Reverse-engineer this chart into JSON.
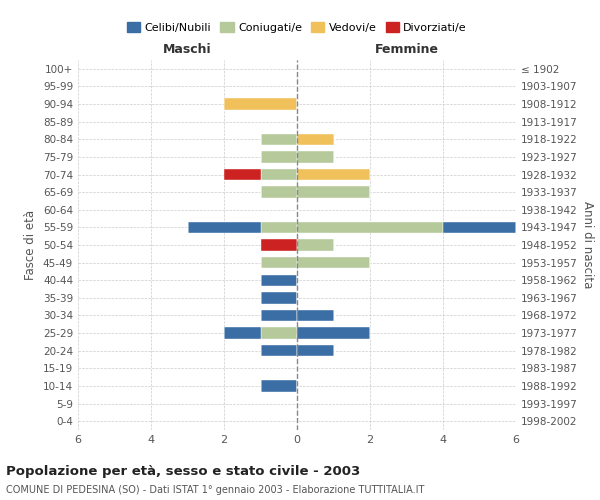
{
  "age_groups": [
    "0-4",
    "5-9",
    "10-14",
    "15-19",
    "20-24",
    "25-29",
    "30-34",
    "35-39",
    "40-44",
    "45-49",
    "50-54",
    "55-59",
    "60-64",
    "65-69",
    "70-74",
    "75-79",
    "80-84",
    "85-89",
    "90-94",
    "95-99",
    "100+"
  ],
  "birth_years": [
    "1998-2002",
    "1993-1997",
    "1988-1992",
    "1983-1987",
    "1978-1982",
    "1973-1977",
    "1968-1972",
    "1963-1967",
    "1958-1962",
    "1953-1957",
    "1948-1952",
    "1943-1947",
    "1938-1942",
    "1933-1937",
    "1928-1932",
    "1923-1927",
    "1918-1922",
    "1913-1917",
    "1908-1912",
    "1903-1907",
    "≤ 1902"
  ],
  "colors": {
    "celibe": "#3a6ea5",
    "coniugato": "#b5c99a",
    "vedovo": "#f0c05a",
    "divorziato": "#cc2222"
  },
  "males": {
    "celibe": [
      0,
      0,
      1,
      0,
      1,
      1,
      1,
      1,
      1,
      0,
      0,
      2,
      0,
      0,
      0,
      0,
      0,
      0,
      0,
      0,
      0
    ],
    "coniugato": [
      0,
      0,
      0,
      0,
      0,
      1,
      0,
      0,
      0,
      1,
      0,
      1,
      0,
      1,
      1,
      1,
      1,
      0,
      0,
      0,
      0
    ],
    "vedovo": [
      0,
      0,
      0,
      0,
      0,
      0,
      0,
      0,
      0,
      0,
      0,
      0,
      0,
      0,
      0,
      0,
      0,
      0,
      2,
      0,
      0
    ],
    "divorziato": [
      0,
      0,
      0,
      0,
      0,
      0,
      0,
      0,
      0,
      0,
      1,
      0,
      0,
      0,
      1,
      0,
      0,
      0,
      0,
      0,
      0
    ]
  },
  "females": {
    "celibe": [
      0,
      0,
      0,
      0,
      1,
      2,
      1,
      0,
      0,
      0,
      0,
      2,
      0,
      0,
      0,
      0,
      0,
      0,
      0,
      0,
      0
    ],
    "coniugato": [
      0,
      0,
      0,
      0,
      0,
      0,
      0,
      0,
      0,
      2,
      1,
      4,
      0,
      2,
      0,
      1,
      0,
      0,
      0,
      0,
      0
    ],
    "vedovo": [
      0,
      0,
      0,
      0,
      0,
      0,
      0,
      0,
      0,
      0,
      0,
      0,
      0,
      0,
      2,
      0,
      1,
      0,
      0,
      0,
      0
    ],
    "divorziato": [
      0,
      0,
      0,
      0,
      0,
      0,
      0,
      0,
      0,
      0,
      0,
      0,
      0,
      0,
      0,
      0,
      0,
      0,
      0,
      0,
      0
    ]
  },
  "xlim": 6,
  "title": "Popolazione per età, sesso e stato civile - 2003",
  "subtitle": "COMUNE DI PEDESINA (SO) - Dati ISTAT 1° gennaio 2003 - Elaborazione TUTTITALIA.IT",
  "xlabel_left": "Maschi",
  "xlabel_right": "Femmine",
  "ylabel_left": "Fasce di età",
  "ylabel_right": "Anni di nascita",
  "background_color": "#ffffff",
  "grid_color": "#cccccc"
}
